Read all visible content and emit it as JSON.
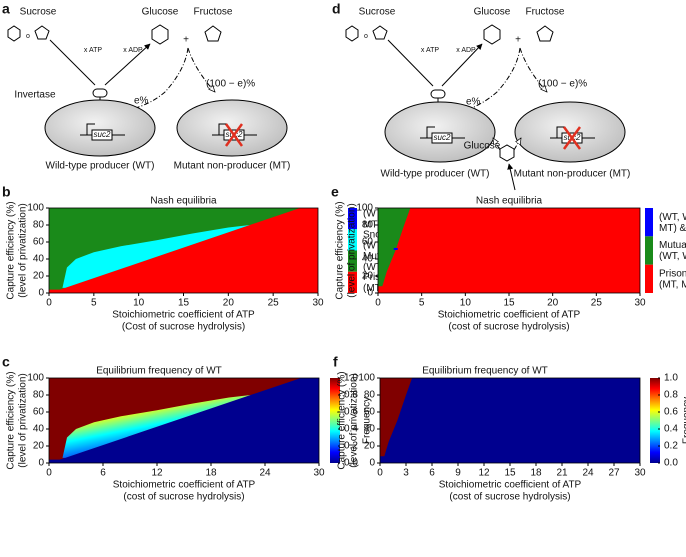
{
  "a": {
    "letter": "a",
    "sucrose": "Sucrose",
    "glucose": "Glucose",
    "fructose": "Fructose",
    "plus": "+",
    "atp": "x ATP",
    "adp": "x ADP",
    "invertase": "Invertase",
    "e": "e%",
    "rest": "(100 − e)%",
    "gene_wt": "suc2",
    "gene_mt": "suc2",
    "wt": "Wild-type producer (WT)",
    "mt": "Mutant non-producer (MT)"
  },
  "d": {
    "letter": "d",
    "sucrose": "Sucrose",
    "glucose": "Glucose",
    "fructose": "Fructose",
    "plus": "+",
    "atp": "x ATP",
    "adp": "x ADP",
    "e": "e%",
    "rest": "(100 − e)%",
    "glucose2": "Glucose",
    "gene_wt": "suc2",
    "gene_mt": "suc2",
    "wt": "Wild-type producer (WT)",
    "mt": "Mutant non-producer (MT)"
  },
  "b": {
    "letter": "b",
    "title": "Nash equilibria",
    "xlabel": [
      "Stoichiometric coefficient of ATP",
      "(Cost of sucrose hydrolysis)"
    ],
    "ylabel": [
      "Capture efficiency (%)",
      "(level of privatization)"
    ],
    "xlim": [
      0,
      30
    ],
    "ylim": [
      0,
      100
    ],
    "xticks": [
      0,
      5,
      10,
      15,
      20,
      25,
      30
    ],
    "yticks": [
      0,
      20,
      40,
      60,
      80,
      100
    ],
    "legend": [
      {
        "label": [
          "(WT,WT) & (MT,",
          "MT) & (WT, MT)"
        ],
        "color": "#0000ff"
      },
      {
        "label": [
          "Snowdirft",
          "(WT, MT)"
        ],
        "color": "#00ffff"
      },
      {
        "label": [
          "Mutually Beneficial",
          "(WT, WT)"
        ],
        "color": "#1a8a1a"
      },
      {
        "label": [
          "Prisoner's Dilemma",
          "(MT, MT)"
        ],
        "color": "#ff0000"
      }
    ]
  },
  "c": {
    "letter": "c",
    "title": "Equilibrium frequency of WT",
    "xlabel": [
      "Stoichiometric coefficient of ATP",
      "(cost of sucrose hydrolysis)"
    ],
    "ylabel": [
      "Capture efficiency (%)",
      "(level of privatization)"
    ],
    "xlim": [
      0,
      30
    ],
    "ylim": [
      0,
      100
    ],
    "xticks": [
      0,
      6,
      12,
      18,
      24,
      30
    ],
    "yticks": [
      0,
      20,
      40,
      60,
      80,
      100
    ],
    "colorbar": {
      "label": "Frequency",
      "lim": [
        0,
        1
      ],
      "ticks": [
        {
          "value": 1,
          "label": "1.0"
        },
        0.8,
        0.6,
        0.4,
        0.2,
        {
          "value": 0,
          "label": "0.0"
        }
      ]
    }
  },
  "e": {
    "letter": "e",
    "title": "Nash equilibria",
    "xlabel": [
      "Stoichiometric coefficient of ATP",
      "(cost of sucrose hydrolysis)"
    ],
    "ylabel": [
      "Capture efficiency (%)",
      "(level of privatization)"
    ],
    "xlim": [
      0,
      30
    ],
    "ylim": [
      0,
      100
    ],
    "xticks": [
      0,
      5,
      10,
      15,
      20,
      25,
      30
    ],
    "yticks": [
      0,
      20,
      40,
      60,
      80,
      100
    ],
    "legend": [
      {
        "label": [
          "(WT, WT) & (MT,",
          "MT) & (WT, MT)"
        ],
        "color": "#0000ff"
      },
      {
        "label": [
          "Mutually Beneficial",
          "(WT, WT)"
        ],
        "color": "#1a8a1a"
      },
      {
        "label": [
          "Prisoner's Dilemma",
          "(MT, MT)"
        ],
        "color": "#ff0000"
      }
    ]
  },
  "f": {
    "letter": "f",
    "title": "Equilibrium frequency of WT",
    "xlabel": [
      "Stoichiometric coefficient of ATP",
      "(cost of sucrose hydrolysis)"
    ],
    "ylabel": [
      "Capture efficiency (%)",
      "(level of privatization)"
    ],
    "xlim": [
      0,
      30
    ],
    "ylim": [
      0,
      100
    ],
    "xticks": [
      0,
      3,
      6,
      9,
      12,
      15,
      18,
      21,
      24,
      27,
      30
    ],
    "yticks": [
      0,
      20,
      40,
      60,
      80,
      100
    ],
    "colorbar": {
      "label": "Frequency",
      "lim": [
        0,
        1
      ],
      "ticks": [
        {
          "value": 1,
          "label": "1.0"
        },
        0.8,
        0.6,
        0.4,
        0.2,
        {
          "value": 0,
          "label": "0.0"
        }
      ]
    }
  }
}
